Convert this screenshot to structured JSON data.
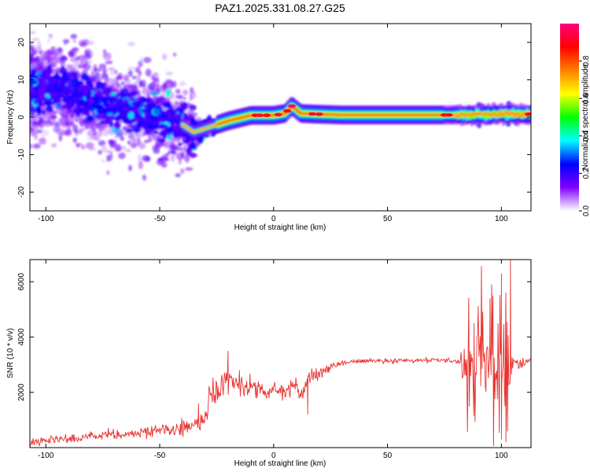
{
  "figure_title": "PAZ1.2025.331.08.27.G25",
  "chart_data": [
    {
      "type": "heatmap",
      "title": "PAZ1.2025.331.08.27.G25",
      "xlabel": "Height of straight line (km)",
      "ylabel": "Frequency (Hz)",
      "xlim": [
        -107,
        113
      ],
      "ylim": [
        -25,
        25
      ],
      "xticks": [
        -100,
        -50,
        0,
        50,
        100
      ],
      "yticks": [
        -20,
        -10,
        0,
        10,
        20
      ],
      "xtick_labels": [
        "-100",
        "-50",
        "0",
        "50",
        "100"
      ],
      "ytick_labels": [
        "-20",
        "-10",
        "0",
        "10",
        "20"
      ],
      "colorbar": {
        "label": "Normalized spectral amplitude",
        "range": [
          0,
          1
        ],
        "ticks": [
          0.0,
          0.2,
          0.4,
          0.6,
          0.8
        ],
        "tick_labels": [
          "0.0",
          "0.2",
          "0.4",
          "0.6",
          "0.8"
        ],
        "colormap": [
          "#ffffff",
          "#7f00ff",
          "#0000ff",
          "#00ffff",
          "#00ff00",
          "#ffff00",
          "#ff7f00",
          "#ff0000",
          "#ff007f"
        ]
      },
      "ridge": {
        "description_points_x": [
          -107,
          -100,
          -90,
          -80,
          -70,
          -60,
          -50,
          -40,
          -35,
          -30,
          -20,
          -10,
          0,
          5,
          8,
          12,
          20,
          30,
          50,
          80,
          100,
          113
        ],
        "description_points_y": [
          7,
          8,
          7,
          5,
          3,
          2,
          0,
          -2,
          -4,
          -3,
          -1,
          0.5,
          0.5,
          1,
          3,
          1,
          0.8,
          0.6,
          0.6,
          0.6,
          0.8,
          0.8
        ]
      }
    },
    {
      "type": "line",
      "xlabel": "Height of straight line (km)",
      "ylabel": "SNR (10 * v/v)",
      "xlim": [
        -107,
        113
      ],
      "ylim": [
        0,
        6800
      ],
      "xticks": [
        -100,
        -50,
        0,
        50,
        100
      ],
      "yticks": [
        2000,
        4000,
        6000
      ],
      "xtick_labels": [
        "-100",
        "-50",
        "0",
        "50",
        "100"
      ],
      "ytick_labels": [
        "2000",
        "4000",
        "6000"
      ],
      "line_color": "#e8312e",
      "series": [
        {
          "name": "SNR",
          "x": [
            -107,
            -100,
            -90,
            -80,
            -70,
            -60,
            -50,
            -40,
            -35,
            -30,
            -28,
            -25,
            -20,
            -15,
            -10,
            -5,
            0,
            5,
            10,
            12,
            15,
            20,
            25,
            30,
            40,
            50,
            60,
            70,
            80,
            85,
            90,
            95,
            100,
            103,
            105,
            110,
            113
          ],
          "mean": [
            200,
            250,
            300,
            380,
            450,
            520,
            620,
            700,
            800,
            1100,
            1700,
            2100,
            2300,
            2300,
            2200,
            2000,
            2000,
            2100,
            2300,
            1800,
            2500,
            2700,
            2900,
            3050,
            3150,
            3150,
            3150,
            3150,
            3150,
            3100,
            3000,
            3000,
            3000,
            3000,
            3050,
            3100,
            3100
          ],
          "noise": [
            150,
            150,
            170,
            190,
            200,
            220,
            250,
            280,
            300,
            400,
            500,
            500,
            450,
            450,
            400,
            350,
            300,
            320,
            350,
            300,
            250,
            200,
            150,
            120,
            100,
            100,
            100,
            100,
            100,
            900,
            1200,
            1300,
            1600,
            1800,
            300,
            150,
            120
          ],
          "peak_points": [
            [
              -20,
              3500
            ],
            [
              -33,
              1600
            ],
            [
              -15,
              2800
            ],
            [
              15,
              1200
            ],
            [
              88,
              4500
            ],
            [
              95,
              5400
            ],
            [
              100,
              6300
            ],
            [
              102,
              5600
            ],
            [
              104,
              6800
            ],
            [
              102,
              200
            ],
            [
              100,
              300
            ]
          ]
        }
      ]
    }
  ]
}
